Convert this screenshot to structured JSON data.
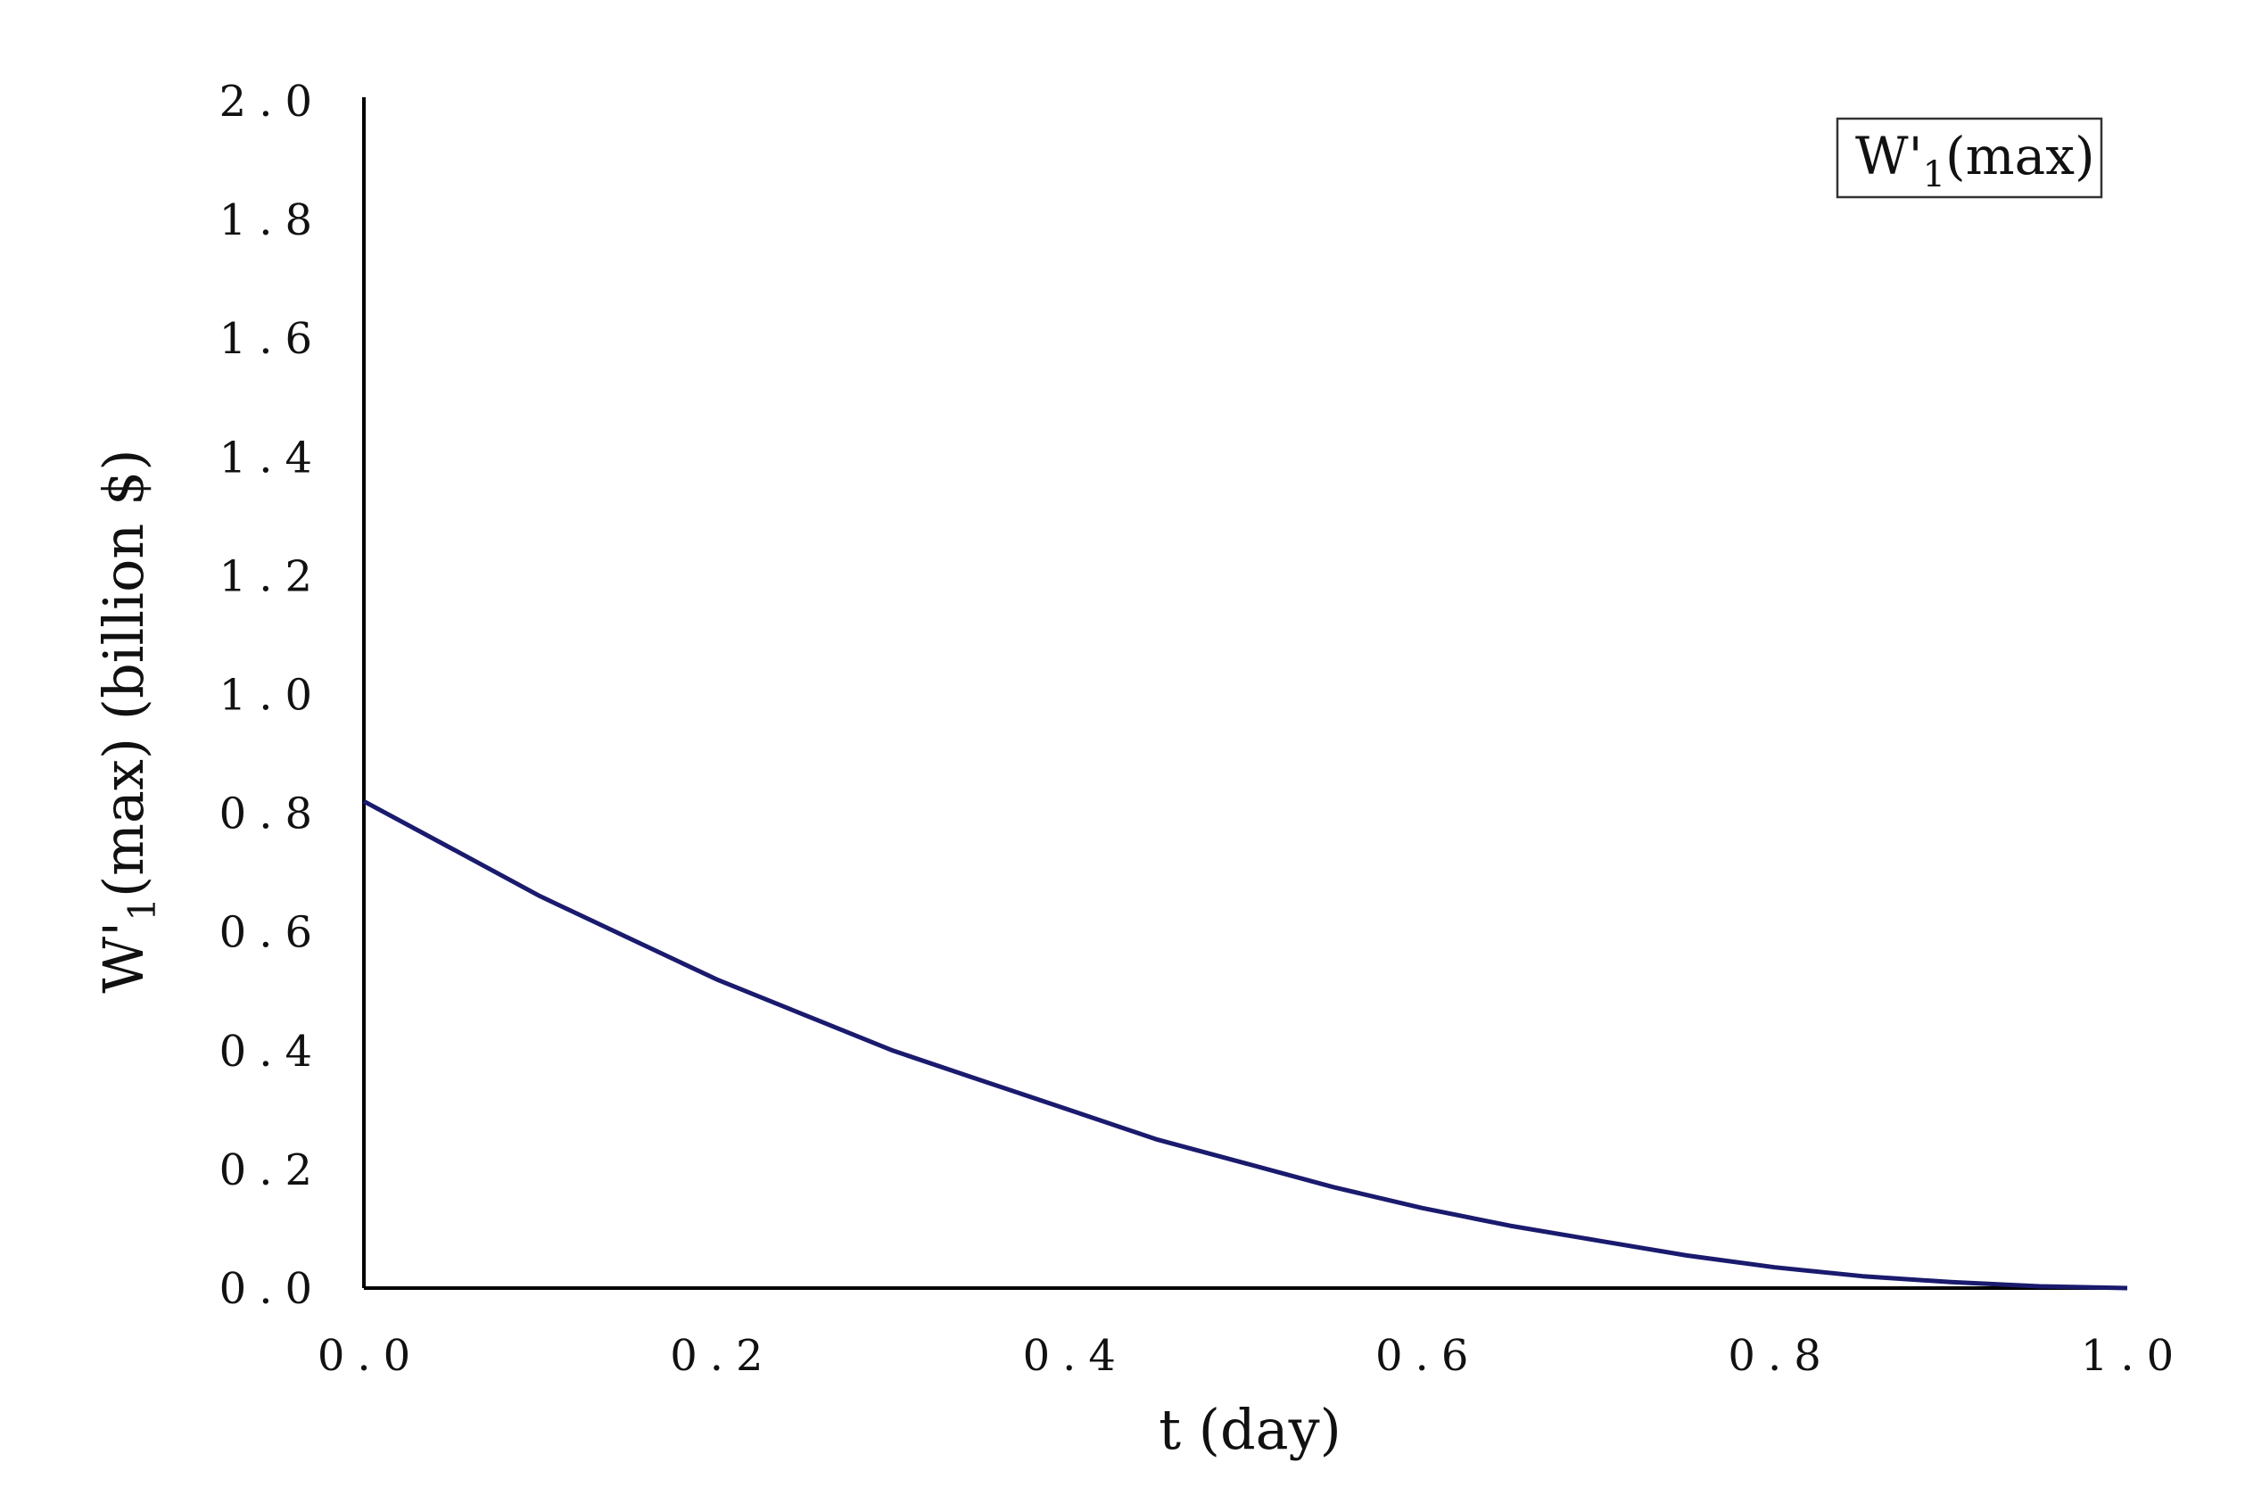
{
  "chart_data": {
    "type": "line",
    "title": "",
    "xlabel": "t (day)",
    "ylabel": "W'1(max) (billion $)",
    "xlim": [
      0.0,
      1.0
    ],
    "ylim": [
      0.0,
      2.0
    ],
    "x_ticks": [
      "0.0",
      "0.2",
      "0.4",
      "0.6",
      "0.8",
      "1.0"
    ],
    "y_ticks": [
      "0.0",
      "0.2",
      "0.4",
      "0.6",
      "0.8",
      "1.0",
      "1.2",
      "1.4",
      "1.6",
      "1.8",
      "2.0"
    ],
    "grid": false,
    "legend_position": "top-right",
    "series": [
      {
        "name": "W'1(max)",
        "color": "#1a1a6e",
        "x": [
          0.0,
          0.05,
          0.1,
          0.15,
          0.2,
          0.25,
          0.3,
          0.35,
          0.4,
          0.45,
          0.5,
          0.55,
          0.6,
          0.65,
          0.7,
          0.75,
          0.8,
          0.85,
          0.9,
          0.95,
          1.0
        ],
        "y": [
          0.82,
          0.74,
          0.66,
          0.59,
          0.52,
          0.46,
          0.4,
          0.35,
          0.3,
          0.25,
          0.21,
          0.17,
          0.135,
          0.105,
          0.08,
          0.055,
          0.035,
          0.02,
          0.01,
          0.003,
          0.0
        ]
      }
    ],
    "legend": {
      "base": "W",
      "prime": "'",
      "sub": "1",
      "suffix": "(max)"
    },
    "ylabel_parts": {
      "base": "W",
      "prime": "'",
      "sub": "1",
      "suffix": "(max)  (billion $)"
    }
  }
}
